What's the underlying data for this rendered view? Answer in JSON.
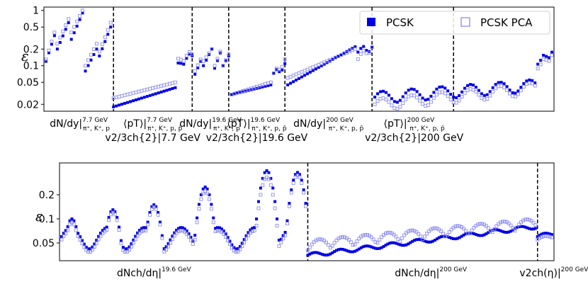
{
  "chart_data": [
    {
      "type": "scatter",
      "ylabel": "ε",
      "y_scale": "log",
      "ylim": [
        0.015,
        1.15
      ],
      "y_ticks": [
        "1",
        "0.5",
        "0.2",
        "0.1",
        "0.05",
        "0.02"
      ],
      "y_tick_values": [
        1,
        0.5,
        0.2,
        0.1,
        0.05,
        0.02
      ],
      "grid": false,
      "legend": {
        "position": "top-right",
        "entries": [
          "PCSK",
          "PCSK PCA"
        ]
      },
      "colors": {
        "PCSK": "#0000e6",
        "PCSK PCA": "#8c8cf0"
      },
      "n_points": 181,
      "dividers_at_index": [
        24,
        52,
        65,
        85,
        116,
        145
      ],
      "categories": [
        {
          "main": "dN/dy|",
          "sup": "7.7 GeV",
          "sub": "π⁺, K⁺, p",
          "line2": ""
        },
        {
          "main": "⟨pT⟩|",
          "sup": "7.7 GeV",
          "sub": "π⁺, K⁺, p, p̄",
          "line2": "v2/3ch{2}|7.7 GeV"
        },
        {
          "main": "dN/dy|",
          "sup": "19.6 GeV",
          "sub": "π⁺, K⁺, p",
          "line2": ""
        },
        {
          "main": "⟨pT⟩|",
          "sup": "19.6 GeV",
          "sub": "π⁺, K⁺, p, p̄",
          "line2": "v2/3ch{2}|19.6 GeV"
        },
        {
          "main": "dN/dy|",
          "sup": "200 GeV",
          "sub": "π⁺, K⁺, p, p̄",
          "line2": ""
        },
        {
          "main": "⟨pT⟩|",
          "sup": "200 GeV",
          "sub": "π⁺, K⁺, p, p̄",
          "line2": "v2/3ch{2}|200 GeV"
        }
      ],
      "category_centers_at_index": [
        12,
        38,
        58.5,
        75,
        100.5,
        131
      ],
      "series": [
        {
          "name": "PCSK",
          "segments": [
            {
              "start": 0,
              "end": 23,
              "shape": "sawtooth",
              "runs": [
                [
                  0.12,
                  0.35,
                  4
                ],
                [
                  0.2,
                  0.6,
                  5
                ],
                [
                  0.3,
                  0.9,
                  5
                ],
                [
                  0.08,
                  0.2,
                  5
                ],
                [
                  0.15,
                  0.5,
                  5
                ]
              ]
            },
            {
              "start": 24,
              "end": 52,
              "shape": "ramp",
              "from": 0.018,
              "to": 0.04,
              "tail": [
                0.1,
                0.16
              ]
            },
            {
              "start": 53,
              "end": 65,
              "shape": "sawtooth",
              "runs": [
                [
                  0.07,
                  0.12,
                  3
                ],
                [
                  0.1,
                  0.2,
                  4
                ],
                [
                  0.09,
                  0.17,
                  3
                ],
                [
                  0.1,
                  0.15,
                  3
                ]
              ]
            },
            {
              "start": 66,
              "end": 85,
              "shape": "ramp",
              "from": 0.03,
              "to": 0.045,
              "tail": [
                0.07,
                0.1
              ]
            },
            {
              "start": 86,
              "end": 116,
              "shape": "ramp",
              "from": 0.045,
              "to": 0.22,
              "tail": [
                0.2,
                0.2
              ]
            },
            {
              "start": 117,
              "end": 180,
              "shape": "wavy",
              "from": 0.027,
              "to": 0.045,
              "tail": [
                0.12,
                0.17
              ]
            }
          ]
        },
        {
          "name": "PCSK PCA",
          "segments": [
            {
              "start": 0,
              "end": 23,
              "shape": "sawtooth",
              "runs": [
                [
                  0.13,
                  0.4,
                  4
                ],
                [
                  0.25,
                  0.7,
                  5
                ],
                [
                  0.4,
                  1.0,
                  5
                ],
                [
                  0.1,
                  0.25,
                  5
                ],
                [
                  0.18,
                  0.6,
                  5
                ]
              ]
            },
            {
              "start": 24,
              "end": 52,
              "shape": "ramp",
              "from": 0.026,
              "to": 0.05,
              "tail": [
                0.12,
                0.17
              ]
            },
            {
              "start": 53,
              "end": 65,
              "shape": "sawtooth",
              "runs": [
                [
                  0.08,
                  0.13,
                  3
                ],
                [
                  0.12,
                  0.2,
                  4
                ],
                [
                  0.1,
                  0.18,
                  3
                ],
                [
                  0.1,
                  0.16,
                  3
                ]
              ]
            },
            {
              "start": 66,
              "end": 85,
              "shape": "ramp",
              "from": 0.03,
              "to": 0.05,
              "tail": [
                0.07,
                0.12
              ]
            },
            {
              "start": 86,
              "end": 116,
              "shape": "ramp",
              "from": 0.06,
              "to": 0.2,
              "tail": [
                0.15,
                0.2
              ]
            },
            {
              "start": 117,
              "end": 180,
              "shape": "wavy",
              "from": 0.02,
              "to": 0.04,
              "tail": [
                0.1,
                0.15
              ]
            }
          ]
        }
      ]
    },
    {
      "type": "scatter",
      "ylabel": "ε",
      "y_scale": "log",
      "ylim": [
        0.03,
        0.5
      ],
      "y_ticks": [
        "0.2",
        "0.1",
        "0.05"
      ],
      "y_tick_values": [
        0.2,
        0.1,
        0.05
      ],
      "grid": false,
      "colors": {
        "PCSK": "#0000e6",
        "PCSK PCA": "#8c8cf0"
      },
      "n_points": 240,
      "dividers_at_index": [
        120,
        232
      ],
      "categories": [
        {
          "main": "dNch/dη|",
          "sup": "19.6 GeV"
        },
        {
          "main": "dNch/dη|",
          "sup": "200 GeV"
        },
        {
          "main": "v2ch(η)|",
          "sup": "200 GeV"
        }
      ],
      "category_centers_at_index": [
        45,
        180,
        240
      ],
      "series": [
        {
          "name": "PCSK",
          "segments": [
            {
              "start": 0,
              "end": 119,
              "shape": "peaks",
              "base": 0.06,
              "peaks": [
                [
                  5,
                  0.1
                ],
                [
                  25,
                  0.13
                ],
                [
                  45,
                  0.15
                ],
                [
                  70,
                  0.25
                ],
                [
                  100,
                  0.4
                ],
                [
                  115,
                  0.38
                ]
              ]
            },
            {
              "start": 120,
              "end": 231,
              "shape": "flat",
              "base": 0.035,
              "rise_to": 0.08
            },
            {
              "start": 232,
              "end": 239,
              "shape": "flat",
              "base": 0.06,
              "rise_to": 0.065
            }
          ]
        },
        {
          "name": "PCSK PCA",
          "segments": [
            {
              "start": 0,
              "end": 119,
              "shape": "peaks",
              "base": 0.055,
              "peaks": [
                [
                  5,
                  0.09
                ],
                [
                  25,
                  0.12
                ],
                [
                  45,
                  0.14
                ],
                [
                  70,
                  0.22
                ],
                [
                  100,
                  0.33
                ],
                [
                  115,
                  0.35
                ]
              ]
            },
            {
              "start": 120,
              "end": 231,
              "shape": "bumps",
              "base": 0.04,
              "rise_to": 0.075
            },
            {
              "start": 232,
              "end": 239,
              "shape": "flat",
              "base": 0.055,
              "rise_to": 0.06
            }
          ]
        }
      ]
    }
  ]
}
